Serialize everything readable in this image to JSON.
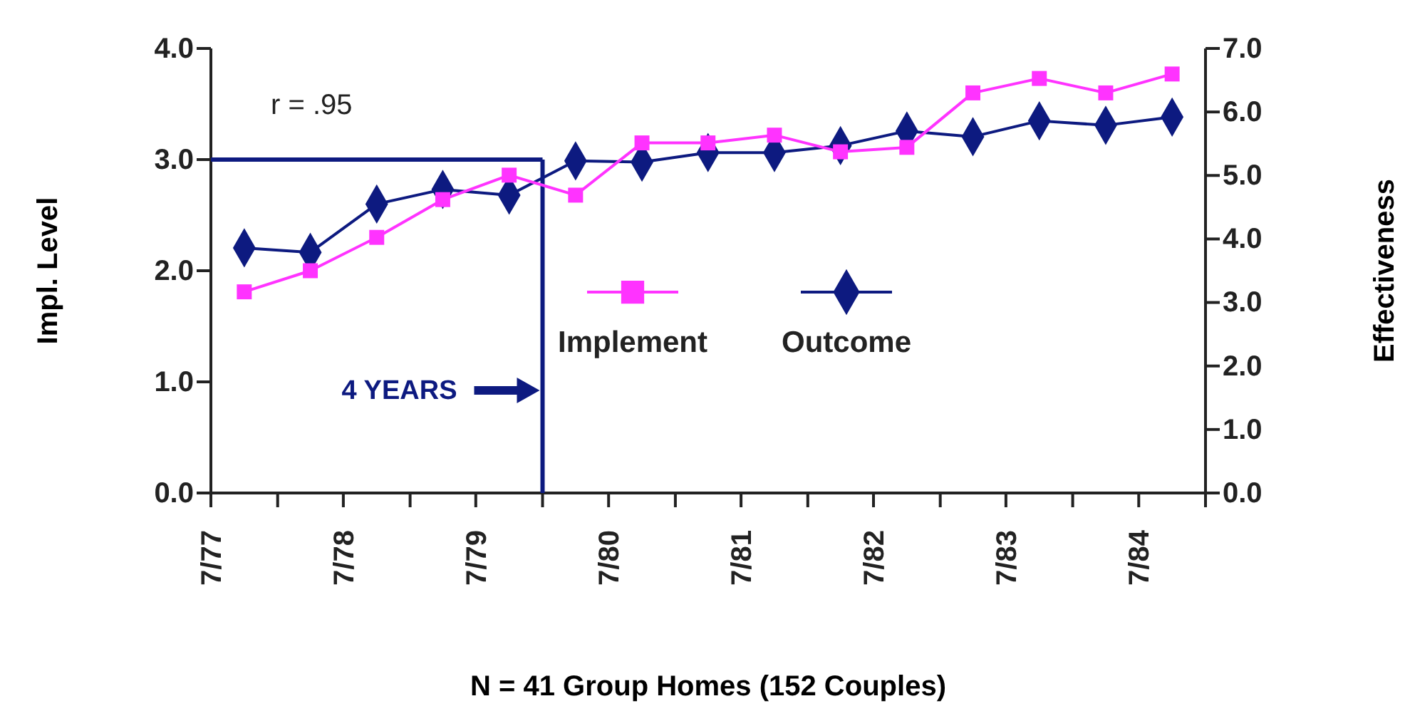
{
  "chart_data": {
    "type": "line",
    "xlabel": "N = 41 Group Homes (152 Couples)",
    "ylabel": "Impl. Level",
    "y2label": "Effectiveness",
    "x": [
      "1977-10",
      "1978-04",
      "1978-10",
      "1979-04",
      "1979-10",
      "1980-04",
      "1980-10",
      "1981-04",
      "1981-10",
      "1982-04",
      "1982-10",
      "1983-04",
      "1983-10",
      "1984-04",
      "1984-10"
    ],
    "series": [
      {
        "name": "Implement",
        "color": "#ff33ff",
        "marker": "square",
        "values": [
          1.81,
          2.0,
          2.3,
          2.64,
          2.86,
          2.68,
          3.15,
          3.15,
          3.22,
          3.07,
          3.11,
          3.6,
          3.73,
          3.6,
          3.77
        ]
      },
      {
        "name": "Outcome",
        "color": "#0d1a80",
        "marker": "diamond",
        "axis": "y2",
        "values": [
          3.86,
          3.79,
          4.55,
          4.78,
          4.69,
          5.23,
          5.21,
          5.36,
          5.36,
          5.47,
          5.7,
          5.61,
          5.86,
          5.79,
          5.92
        ]
      }
    ],
    "xlim": [
      "1977-07",
      "1985-01"
    ],
    "xticks": [
      {
        "value": "1977-07",
        "label": "7/77"
      },
      {
        "value": "1978-01",
        "label": null
      },
      {
        "value": "1978-07",
        "label": "7/78"
      },
      {
        "value": "1979-01",
        "label": null
      },
      {
        "value": "1979-07",
        "label": "7/79"
      },
      {
        "value": "1980-01",
        "label": null
      },
      {
        "value": "1980-07",
        "label": "7/80"
      },
      {
        "value": "1981-01",
        "label": null
      },
      {
        "value": "1981-07",
        "label": "7/81"
      },
      {
        "value": "1982-01",
        "label": null
      },
      {
        "value": "1982-07",
        "label": "7/82"
      },
      {
        "value": "1983-01",
        "label": null
      },
      {
        "value": "1983-07",
        "label": "7/83"
      },
      {
        "value": "1984-01",
        "label": null
      },
      {
        "value": "1984-07",
        "label": "7/84"
      },
      {
        "value": "1985-01",
        "label": null
      }
    ],
    "ylim": [
      0,
      4
    ],
    "yticks": [
      {
        "value": 0,
        "label": "0.0"
      },
      {
        "value": 1,
        "label": "1.0"
      },
      {
        "value": 2,
        "label": "2.0"
      },
      {
        "value": 3,
        "label": "3.0"
      },
      {
        "value": 4,
        "label": "4.0"
      }
    ],
    "y2lim": [
      0,
      7
    ],
    "y2ticks": [
      {
        "value": 0,
        "label": "0.0"
      },
      {
        "value": 1,
        "label": "1.0"
      },
      {
        "value": 2,
        "label": "2.0"
      },
      {
        "value": 3,
        "label": "3.0"
      },
      {
        "value": 4,
        "label": "4.0"
      },
      {
        "value": 5,
        "label": "5.0"
      },
      {
        "value": 6,
        "label": "6.0"
      },
      {
        "value": 7,
        "label": "7.0"
      }
    ],
    "ref_lines": [
      {
        "axis": "x",
        "value": "1980-01",
        "label": "4 YEARS",
        "color": "#0d1a80"
      },
      {
        "axis": "y",
        "value": 3,
        "color": "#0d1a80"
      }
    ],
    "annotations": [
      "r = .95"
    ],
    "legend": "center",
    "grid": false
  }
}
